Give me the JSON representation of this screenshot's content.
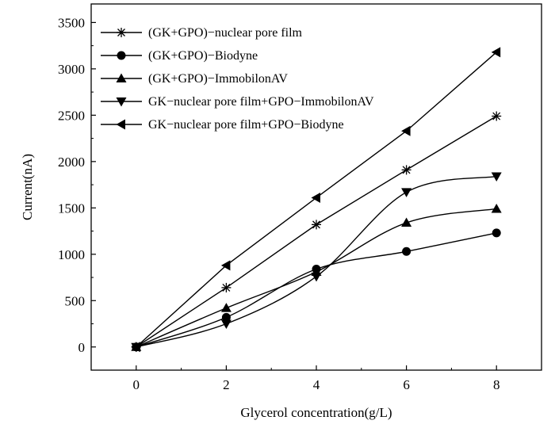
{
  "chart_data": {
    "type": "line",
    "title": "",
    "xlabel": "Glycerol concentration(g/L)",
    "ylabel": "Current(nA)",
    "xlim": [
      -1,
      9
    ],
    "ylim": [
      -250,
      3700
    ],
    "xticks": [
      0,
      2,
      4,
      6,
      8
    ],
    "yticks": [
      0,
      500,
      1000,
      1500,
      2000,
      2500,
      3000,
      3500
    ],
    "grid": false,
    "legend_position": "top-left",
    "x": [
      0,
      2,
      4,
      6,
      8
    ],
    "series": [
      {
        "name": "(GK+GPO)−nuclear pore film",
        "marker": "asterisk",
        "smooth": false,
        "values": [
          0,
          640,
          1320,
          1910,
          2490
        ]
      },
      {
        "name": "(GK+GPO)−Biodyne",
        "marker": "circle",
        "smooth": true,
        "values": [
          0,
          320,
          840,
          1030,
          1230
        ]
      },
      {
        "name": "(GK+GPO)−ImmobilonAV",
        "marker": "triangle-up",
        "smooth": true,
        "values": [
          0,
          420,
          810,
          1340,
          1490
        ]
      },
      {
        "name": "GK−nuclear pore film+GPO−ImmobilonAV",
        "marker": "triangle-down",
        "smooth": true,
        "values": [
          0,
          250,
          760,
          1670,
          1840
        ]
      },
      {
        "name": "GK−nuclear pore film+GPO−Biodyne",
        "marker": "triangle-left",
        "smooth": false,
        "values": [
          0,
          880,
          1610,
          2330,
          3180
        ]
      }
    ]
  }
}
